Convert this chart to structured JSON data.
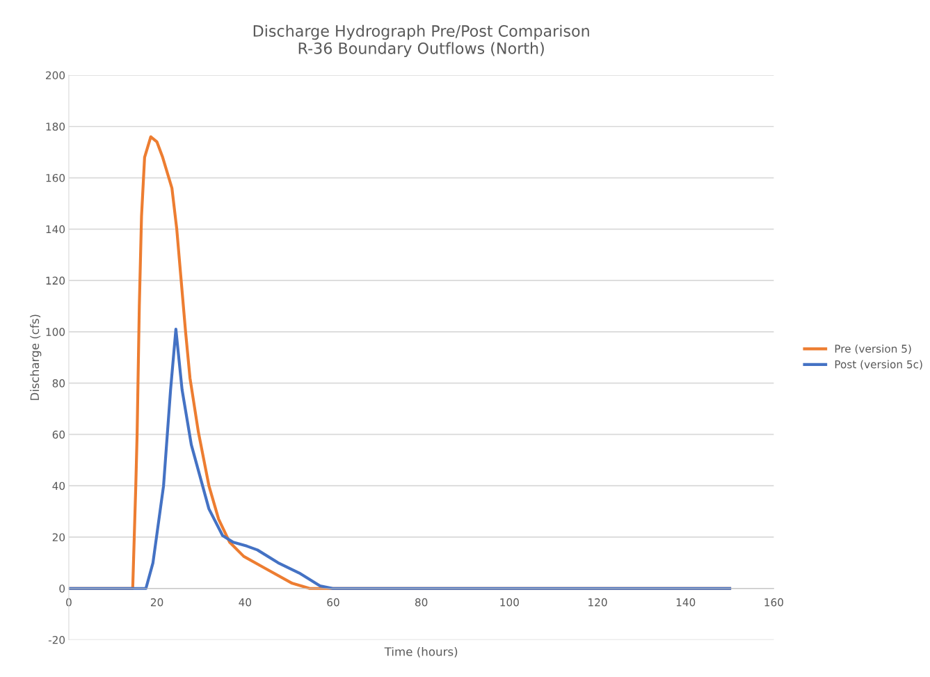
{
  "chart_data": {
    "type": "line",
    "title": "Discharge Hydrograph Pre/Post Comparison\nR-36 Boundary Outflows (North)",
    "xlabel": "Time (hours)",
    "ylabel": "Discharge (cfs)",
    "series": [
      {
        "name": "Pre (version 5)",
        "color": "#ed7d31",
        "x": [
          0,
          14.5,
          15.2,
          15.5,
          16,
          16.5,
          17.2,
          18.6,
          20,
          21.3,
          23.4,
          24.5,
          25.4,
          26.5,
          27.5,
          29.4,
          31.8,
          34,
          36.5,
          39.7,
          44.4,
          50.7,
          54.7,
          150
        ],
        "values": [
          0,
          0,
          40,
          60,
          110,
          145,
          168,
          176,
          174,
          168,
          156,
          140,
          122,
          100,
          82,
          61,
          40,
          27,
          18,
          12.5,
          8,
          2,
          0,
          0
        ]
      },
      {
        "name": "Post (version 5c)",
        "color": "#4472c4",
        "x": [
          0,
          17.5,
          19.1,
          21.5,
          23.1,
          24.3,
          25.7,
          27.8,
          31.8,
          34.9,
          37.3,
          40.4,
          42.8,
          47.5,
          52.3,
          57,
          59.9,
          150
        ],
        "values": [
          0,
          0,
          10,
          40,
          77.5,
          101,
          77.5,
          56,
          31,
          20.6,
          18,
          16.5,
          15,
          10,
          6,
          1,
          0,
          0
        ]
      }
    ],
    "xlim": [
      0,
      160
    ],
    "xticks": [
      0,
      20,
      40,
      60,
      80,
      100,
      120,
      140,
      160
    ],
    "ylim": [
      -20,
      200
    ],
    "yticks": [
      -20,
      0,
      20,
      40,
      60,
      80,
      100,
      120,
      140,
      160,
      180,
      200
    ],
    "grid": "y",
    "legend": "right",
    "marker": "none",
    "line_style": "solid"
  }
}
